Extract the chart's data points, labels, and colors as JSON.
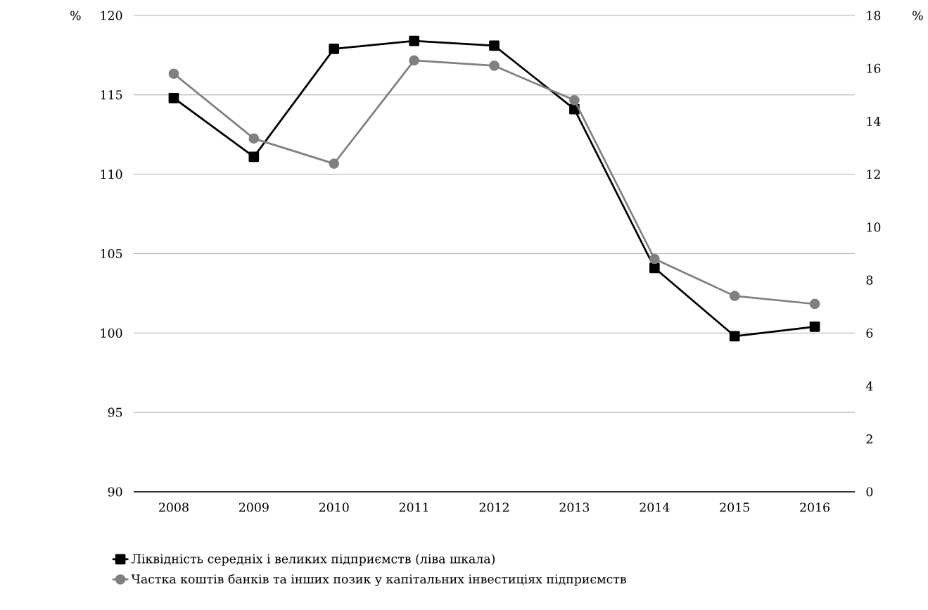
{
  "chart_data": {
    "type": "line",
    "ylabel": "%",
    "y2label": "%",
    "categories": [
      "2008",
      "2009",
      "2010",
      "2011",
      "2012",
      "2013",
      "2014",
      "2015",
      "2016"
    ],
    "ylim": [
      90,
      120
    ],
    "yticks": [
      90,
      95,
      100,
      105,
      110,
      115,
      120
    ],
    "y2lim": [
      0,
      18
    ],
    "y2ticks": [
      0,
      2,
      4,
      6,
      8,
      10,
      12,
      14,
      16,
      18
    ],
    "grid": "y",
    "legend": "bottom",
    "series": [
      {
        "name": "Ліквідність середніх і великих підприємств (ліва шкала)",
        "color": "#000000",
        "marker": "square",
        "values": [
          114.8,
          111.1,
          117.9,
          118.4,
          118.1,
          114.1,
          104.1,
          99.8,
          100.4
        ]
      },
      {
        "name": "Частка коштів банків та інших позик у капітальних інвестиціях підприємств",
        "color": "#808080",
        "marker": "circle",
        "axis": "y2",
        "values": [
          15.8,
          13.35,
          12.4,
          16.3,
          16.1,
          14.8,
          8.8,
          7.4,
          7.1
        ]
      }
    ]
  }
}
